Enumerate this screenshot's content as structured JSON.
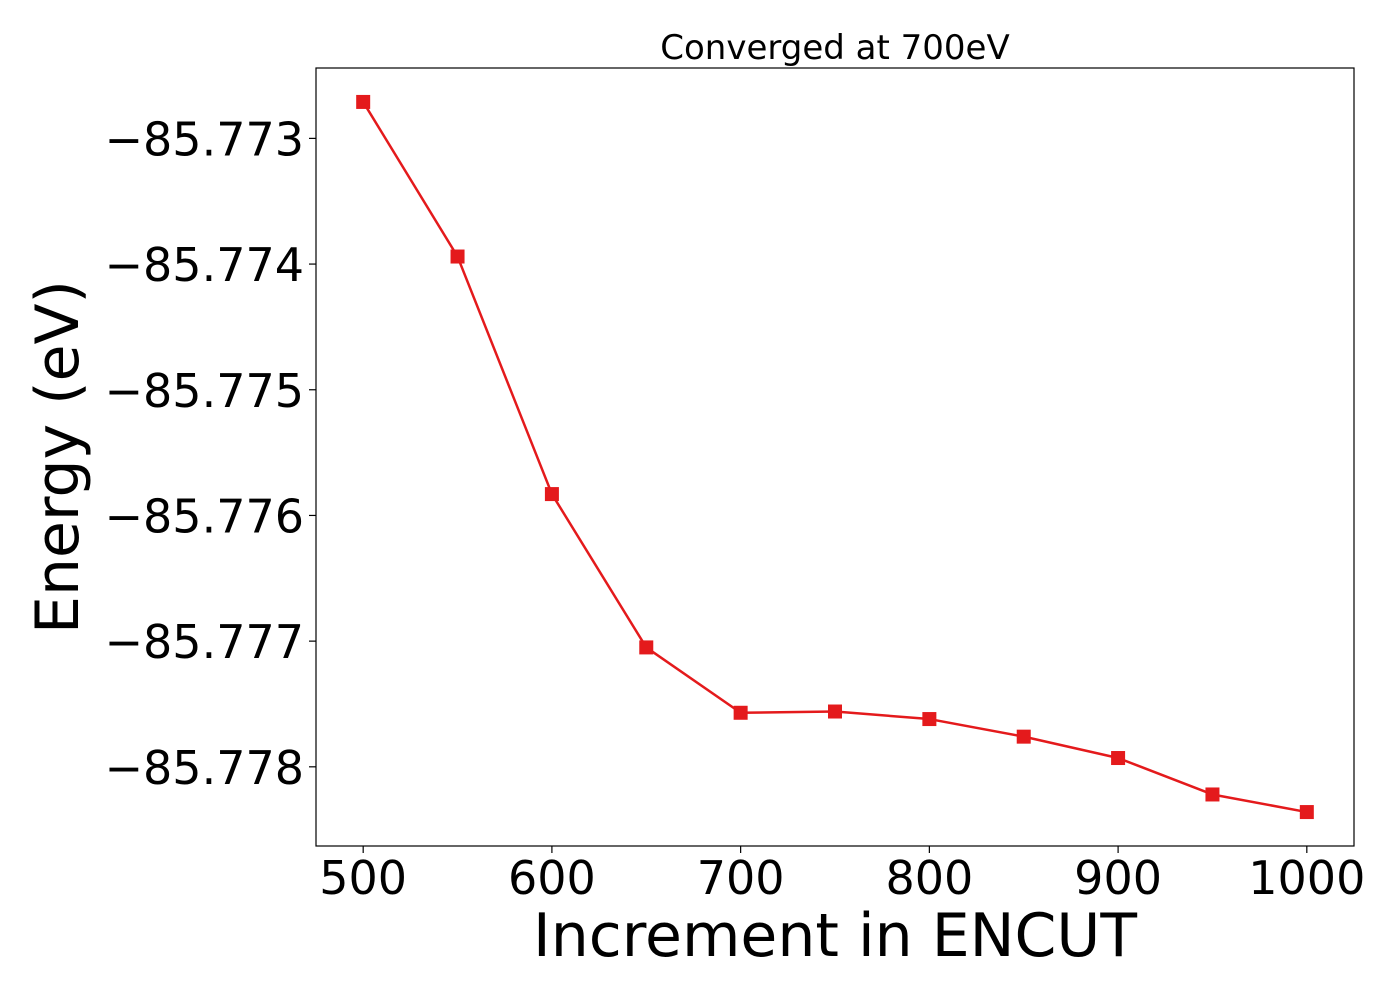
{
  "chart_data": {
    "type": "line",
    "title": "Converged at 700eV",
    "xlabel": "Increment in ENCUT",
    "ylabel": "Energy (eV)",
    "x": [
      500,
      550,
      600,
      650,
      700,
      750,
      800,
      850,
      900,
      950,
      1000
    ],
    "series": [
      {
        "values": [
          -85.77271,
          -85.77394,
          -85.77583,
          -85.77705,
          -85.77757,
          -85.77756,
          -85.77762,
          -85.77776,
          -85.77793,
          -85.77822,
          -85.77836
        ],
        "color": "#e41a1c",
        "marker": "square"
      }
    ],
    "xticks": [
      500,
      600,
      700,
      800,
      900,
      1000
    ],
    "xtick_labels": [
      "500",
      "600",
      "700",
      "800",
      "900",
      "1000"
    ],
    "yticks": [
      -85.773,
      -85.774,
      -85.775,
      -85.776,
      -85.777,
      -85.778
    ],
    "ytick_labels": [
      "−85.773",
      "−85.774",
      "−85.775",
      "−85.776",
      "−85.777",
      "−85.778"
    ],
    "xlim": [
      475,
      1025
    ],
    "ylim": [
      -85.77863,
      -85.77244
    ],
    "grid": false,
    "legend": "none"
  }
}
